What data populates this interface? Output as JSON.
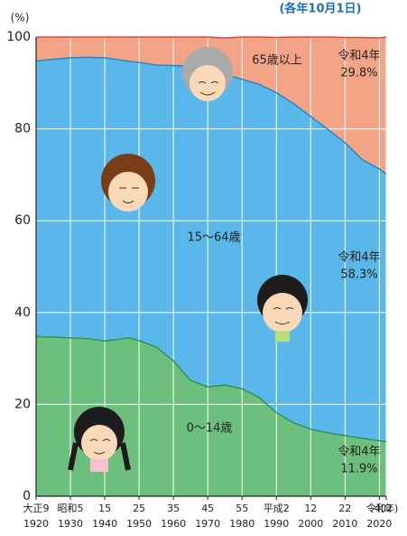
{
  "chart_data": {
    "type": "stacked_area",
    "note": "(各年10月1日)",
    "y_unit": "(%)",
    "x": [
      1920,
      1930,
      1935,
      1940,
      1947,
      1950,
      1955,
      1960,
      1965,
      1970,
      1975,
      1980,
      1985,
      1990,
      1995,
      2000,
      2005,
      2010,
      2015,
      2020,
      2022
    ],
    "series": [
      {
        "name": "0〜14歳",
        "color": "#6cbf7c",
        "line": "#2f9450",
        "values": [
          34.8,
          34.5,
          34.3,
          33.8,
          34.5,
          33.9,
          32.5,
          29.5,
          25.2,
          23.8,
          24.2,
          23.4,
          21.5,
          18.2,
          16.0,
          14.6,
          13.8,
          13.2,
          12.6,
          12.1,
          11.9
        ],
        "end_label": "令和4年",
        "value_labels": [
          null,
          null,
          null,
          null,
          null,
          null,
          null,
          null,
          null,
          null,
          null,
          null,
          null,
          null,
          null,
          null,
          null,
          null,
          null,
          null,
          "11.9%"
        ]
      },
      {
        "name": "15〜64歳",
        "color": "#5ab7ea",
        "line": "#2a86c8",
        "values": [
          60.0,
          61.0,
          61.3,
          61.7,
          60.2,
          60.6,
          61.4,
          64.3,
          68.5,
          69.3,
          67.7,
          67.4,
          68.2,
          69.7,
          69.5,
          68.1,
          66.1,
          63.8,
          60.7,
          59.2,
          58.3
        ],
        "end_label": "令和4年",
        "value_labels": [
          null,
          null,
          null,
          null,
          null,
          null,
          null,
          null,
          null,
          null,
          null,
          null,
          null,
          null,
          null,
          null,
          null,
          null,
          null,
          null,
          "58.3%"
        ]
      },
      {
        "name": "65歳以上",
        "color": "#f4a486",
        "line": "#d9483a",
        "values": [
          5.2,
          4.5,
          4.4,
          4.5,
          5.3,
          5.5,
          6.1,
          6.2,
          6.3,
          6.9,
          7.9,
          9.2,
          10.3,
          12.0,
          14.5,
          17.3,
          20.1,
          22.9,
          26.6,
          28.5,
          29.8
        ],
        "end_label": "令和4年",
        "value_labels": [
          null,
          null,
          null,
          null,
          null,
          null,
          null,
          null,
          null,
          null,
          null,
          null,
          null,
          null,
          null,
          null,
          null,
          null,
          null,
          null,
          "29.8%"
        ]
      }
    ],
    "xlim": [
      1920,
      2022
    ],
    "xticks": [
      {
        "value": 1920,
        "label": "大正9"
      },
      {
        "value": 1930,
        "label": "昭和5"
      },
      {
        "value": 1940,
        "label": "15"
      },
      {
        "value": 1950,
        "label": "25"
      },
      {
        "value": 1960,
        "label": "35"
      },
      {
        "value": 1970,
        "label": "45"
      },
      {
        "value": 1980,
        "label": "55"
      },
      {
        "value": 1990,
        "label": "平成2"
      },
      {
        "value": 2000,
        "label": "12"
      },
      {
        "value": 2010,
        "label": "22"
      },
      {
        "value": 2020,
        "label": "令和2"
      },
      {
        "value": 2022,
        "label": "4(年)"
      }
    ],
    "xticks_western": [
      1920,
      1930,
      1940,
      1950,
      1960,
      1970,
      1980,
      1990,
      2000,
      2010,
      2020
    ],
    "ylim": [
      0,
      100
    ],
    "yticks": [
      0,
      20,
      40,
      60,
      80,
      100
    ],
    "grid": true
  }
}
